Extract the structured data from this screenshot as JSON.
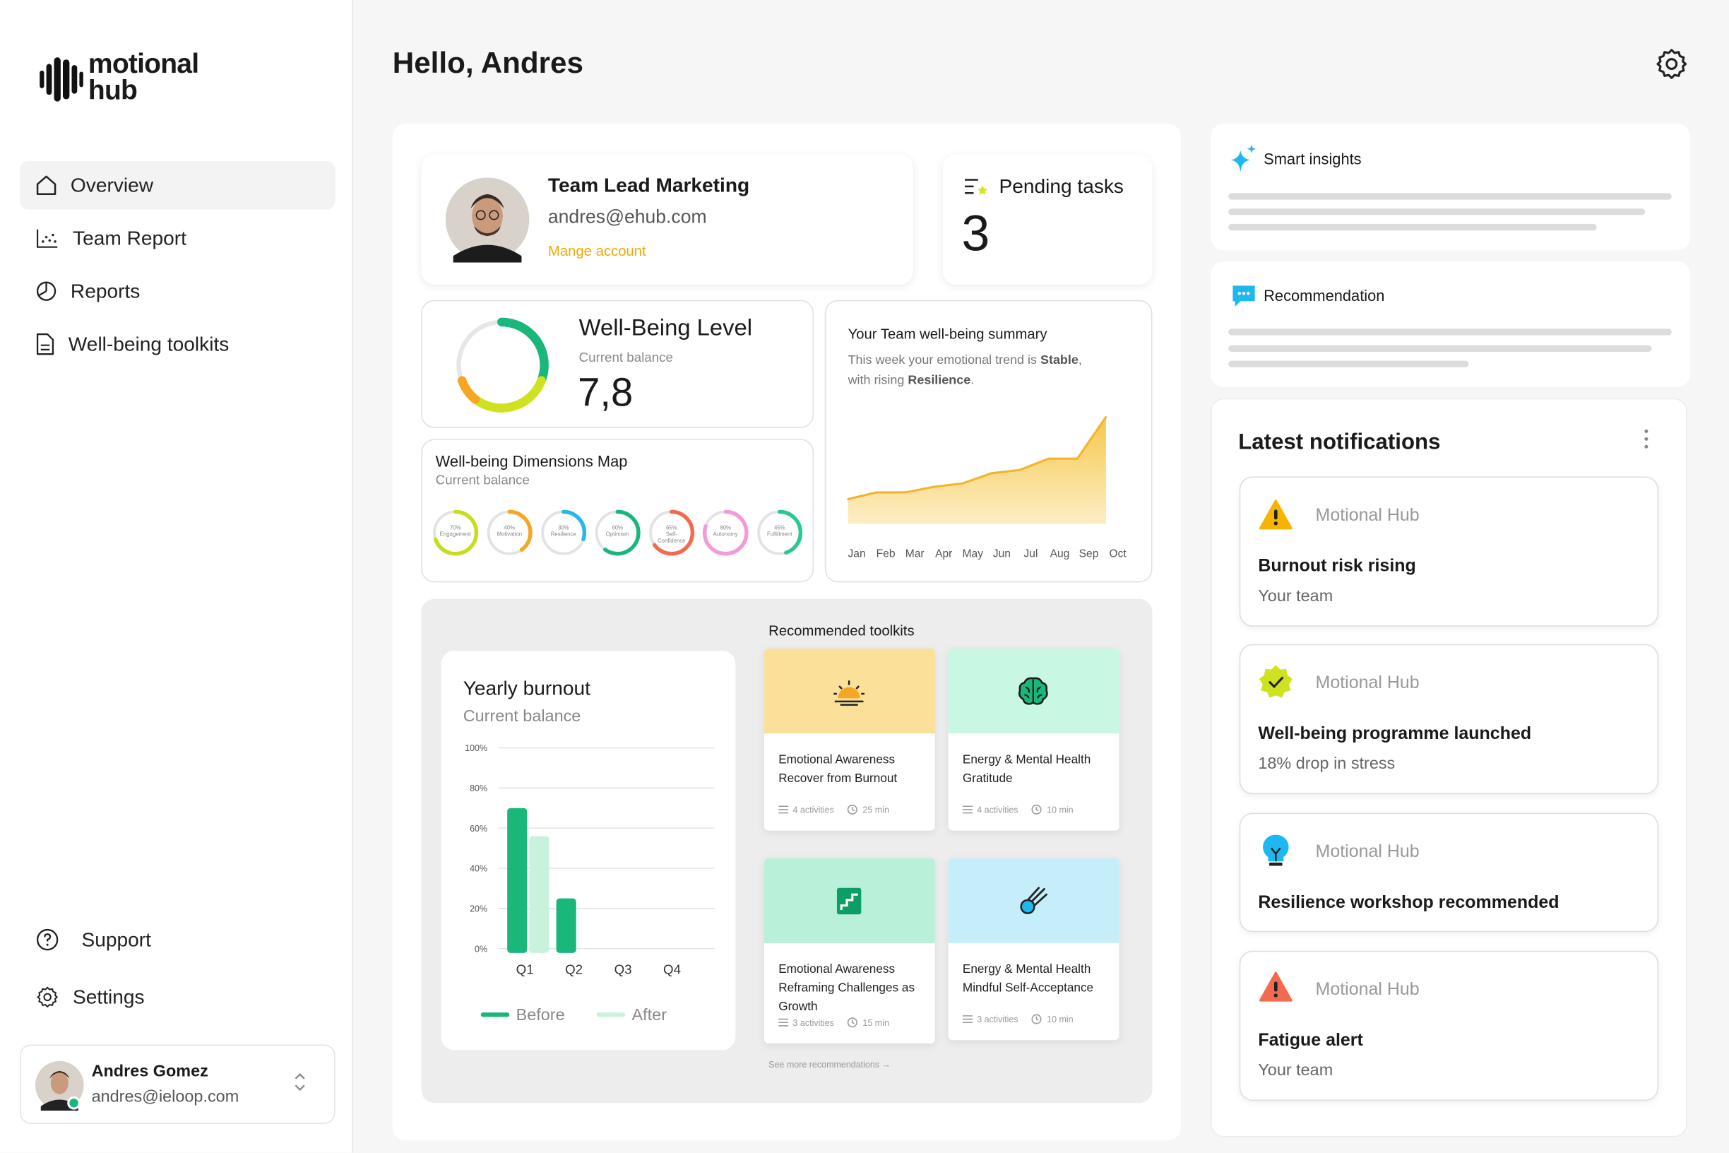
{
  "brand": {
    "line1": "motional",
    "line2": "hub"
  },
  "nav": {
    "overview": "Overview",
    "team_report": "Team Report",
    "reports": "Reports",
    "toolkits": "Well-being toolkits",
    "support": "Support",
    "settings": "Settings"
  },
  "user": {
    "name": "Andres Gomez",
    "email": "andres@ieloop.com"
  },
  "header": {
    "greeting": "Hello, Andres"
  },
  "profile": {
    "role": "Team Lead Marketing",
    "email": "andres@ehub.com",
    "manage": "Mange account"
  },
  "pending": {
    "label": "Pending tasks",
    "count": "3"
  },
  "wellbeing": {
    "title": "Well-Being Level",
    "subtitle": "Current balance",
    "value": "7,8"
  },
  "dimensions": {
    "title": "Well-being Dimensions Map",
    "subtitle": "Current balance",
    "items": [
      {
        "pct": "70%",
        "label": "Engagement",
        "value": 0.7,
        "color": "#c8dd1e"
      },
      {
        "pct": "40%",
        "label": "Motivation",
        "value": 0.4,
        "color": "#f5a623"
      },
      {
        "pct": "30%",
        "label": "Resilience",
        "value": 0.3,
        "color": "#29b6e8"
      },
      {
        "pct": "60%",
        "label": "Optimism",
        "value": 0.6,
        "color": "#19b77a"
      },
      {
        "pct": "65%",
        "label": "Self-Confidence",
        "value": 0.65,
        "color": "#f26b50"
      },
      {
        "pct": "80%",
        "label": "Autonomy",
        "value": 0.8,
        "color": "#f29bd8"
      },
      {
        "pct": "45%",
        "label": "Fulfillment",
        "value": 0.45,
        "color": "#2cc98e"
      }
    ]
  },
  "summary": {
    "title": "Your Team well-being summary",
    "text_a": "This week your emotional trend is ",
    "text_b": "Stable",
    "text_c": ",",
    "text_d": "with rising ",
    "text_e": "Resilience",
    "text_f": ".",
    "months": [
      "Jan",
      "Feb",
      "Mar",
      "Apr",
      "May",
      "Jun",
      "Jul",
      "Aug",
      "Sep",
      "Oct"
    ]
  },
  "chart_data": [
    {
      "type": "area",
      "categories": [
        "Jan",
        "Feb",
        "Mar",
        "Apr",
        "May",
        "Jun",
        "Jul",
        "Aug",
        "Sep",
        "Oct"
      ],
      "values": [
        22,
        28,
        28,
        33,
        36,
        45,
        48,
        58,
        58,
        95
      ],
      "ylim": [
        0,
        100
      ],
      "color": "#f5c542"
    },
    {
      "type": "bar",
      "title": "Yearly burnout",
      "subtitle": "Current balance",
      "categories": [
        "Q1",
        "Q2",
        "Q3",
        "Q4"
      ],
      "series": [
        {
          "name": "Before",
          "values": [
            70,
            25,
            0,
            0
          ],
          "color": "#19b77a"
        },
        {
          "name": "After",
          "values": [
            56,
            0,
            0,
            0
          ],
          "color": "#c9f2dd"
        }
      ],
      "yticks": [
        "100%",
        "80%",
        "60%",
        "40%",
        "20%",
        "0%"
      ],
      "ylim": [
        0,
        100
      ]
    }
  ],
  "toolkits": {
    "heading": "Recommended toolkits",
    "more": "See more recommendations →",
    "items": [
      {
        "category": "Emotional Awareness",
        "name": "Recover from Burnout",
        "activities": "4 activities",
        "time": "25 min",
        "bg": "#fbe09a",
        "icon": "sunset-icon"
      },
      {
        "category": "Energy & Mental Health",
        "name": "Gratitude",
        "activities": "4 activities",
        "time": "10 min",
        "bg": "#c8f7e4",
        "icon": "brain-icon"
      },
      {
        "category": "Emotional Awareness",
        "name": "Reframing Challenges as Growth",
        "activities": "3 activities",
        "time": "15 min",
        "bg": "#b8f0d9",
        "icon": "stairs-icon"
      },
      {
        "category": "Energy & Mental Health",
        "name": "Mindful Self-Acceptance",
        "activities": "3 activities",
        "time": "10 min",
        "bg": "#c6eefa",
        "icon": "comet-icon"
      }
    ]
  },
  "insights": {
    "smart": "Smart insights",
    "recommendation": "Recommendation"
  },
  "notifications": {
    "title": "Latest notifications",
    "items": [
      {
        "source": "Motional Hub",
        "title": "Burnout risk rising",
        "subtitle": "Your team",
        "icon": "warning-icon"
      },
      {
        "source": "Motional Hub",
        "title": "Well-being programme launched",
        "subtitle": "18% drop in stress",
        "icon": "check-badge-icon"
      },
      {
        "source": "Motional Hub",
        "title": "Resilience workshop recommended",
        "subtitle": "",
        "icon": "lightbulb-icon"
      },
      {
        "source": "Motional Hub",
        "title": "Fatigue alert",
        "subtitle": "Your team",
        "icon": "alert-triangle-icon"
      }
    ]
  }
}
